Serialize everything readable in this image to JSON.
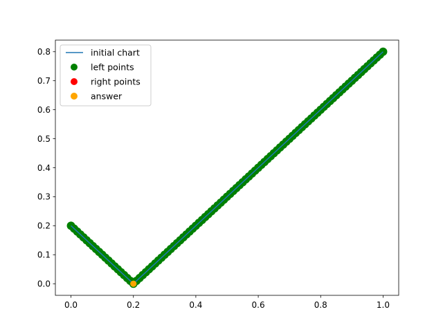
{
  "chart_data": {
    "type": "scatter",
    "title": "",
    "xlabel": "",
    "ylabel": "",
    "xlim": [
      -0.05,
      1.05
    ],
    "ylim": [
      -0.04,
      0.84
    ],
    "xticks": [
      0.0,
      0.2,
      0.4,
      0.6,
      0.8,
      1.0
    ],
    "xtick_labels": [
      "0.0",
      "0.2",
      "0.4",
      "0.6",
      "0.8",
      "1.0"
    ],
    "yticks": [
      0.0,
      0.1,
      0.2,
      0.3,
      0.4,
      0.5,
      0.6,
      0.7,
      0.8
    ],
    "ytick_labels": [
      "0.0",
      "0.1",
      "0.2",
      "0.3",
      "0.4",
      "0.5",
      "0.6",
      "0.7",
      "0.8"
    ],
    "grid": false,
    "legend_position": "top-left",
    "series": [
      {
        "name": "initial chart",
        "kind": "line",
        "color": "#1f77b4",
        "x": [
          0.0,
          0.2,
          1.0
        ],
        "y": [
          0.2,
          0.0,
          0.8
        ]
      },
      {
        "name": "left points",
        "kind": "scatter",
        "color": "#008000",
        "x": [
          0.0,
          0.01,
          0.02,
          0.03,
          0.04,
          0.05,
          0.06,
          0.07,
          0.08,
          0.09,
          0.1,
          0.11,
          0.12,
          0.13,
          0.14,
          0.15,
          0.16,
          0.17,
          0.18,
          0.19,
          0.2,
          0.21,
          0.22,
          0.23,
          0.24,
          0.25,
          0.26,
          0.27,
          0.28,
          0.29,
          0.3,
          0.31,
          0.32,
          0.33,
          0.34,
          0.35,
          0.36,
          0.37,
          0.38,
          0.39,
          0.4,
          0.41,
          0.42,
          0.43,
          0.44,
          0.45,
          0.46,
          0.47,
          0.48,
          0.49,
          0.5,
          0.51,
          0.52,
          0.53,
          0.54,
          0.55,
          0.56,
          0.57,
          0.58,
          0.59,
          0.6,
          0.61,
          0.62,
          0.63,
          0.64,
          0.65,
          0.66,
          0.67,
          0.68,
          0.69,
          0.7,
          0.71,
          0.72,
          0.73,
          0.74,
          0.75,
          0.76,
          0.77,
          0.78,
          0.79,
          0.8,
          0.81,
          0.82,
          0.83,
          0.84,
          0.85,
          0.86,
          0.87,
          0.88,
          0.89,
          0.9,
          0.91,
          0.92,
          0.93,
          0.94,
          0.95,
          0.96,
          0.97,
          0.98,
          0.99,
          1.0
        ],
        "y": [
          0.2,
          0.19,
          0.18,
          0.17,
          0.16,
          0.15,
          0.14,
          0.13,
          0.12,
          0.11,
          0.1,
          0.09,
          0.08,
          0.07,
          0.06,
          0.05,
          0.04,
          0.03,
          0.02,
          0.01,
          0.0,
          0.01,
          0.02,
          0.03,
          0.04,
          0.05,
          0.06,
          0.07,
          0.08,
          0.09,
          0.1,
          0.11,
          0.12,
          0.13,
          0.14,
          0.15,
          0.16,
          0.17,
          0.18,
          0.19,
          0.2,
          0.21,
          0.22,
          0.23,
          0.24,
          0.25,
          0.26,
          0.27,
          0.28,
          0.29,
          0.3,
          0.31,
          0.32,
          0.33,
          0.34,
          0.35,
          0.36,
          0.37,
          0.38,
          0.39,
          0.4,
          0.41,
          0.42,
          0.43,
          0.44,
          0.45,
          0.46,
          0.47,
          0.48,
          0.49,
          0.5,
          0.51,
          0.52,
          0.53,
          0.54,
          0.55,
          0.56,
          0.57,
          0.58,
          0.59,
          0.6,
          0.61,
          0.62,
          0.63,
          0.64,
          0.65,
          0.66,
          0.67,
          0.68,
          0.69,
          0.7,
          0.71,
          0.72,
          0.73,
          0.74,
          0.75,
          0.76,
          0.77,
          0.78,
          0.79,
          0.8
        ]
      },
      {
        "name": "right points",
        "kind": "scatter",
        "color": "#ff0000",
        "x": [],
        "y": []
      },
      {
        "name": "answer",
        "kind": "scatter",
        "color": "#ffa500",
        "x": [
          0.2
        ],
        "y": [
          0.0
        ]
      }
    ]
  }
}
